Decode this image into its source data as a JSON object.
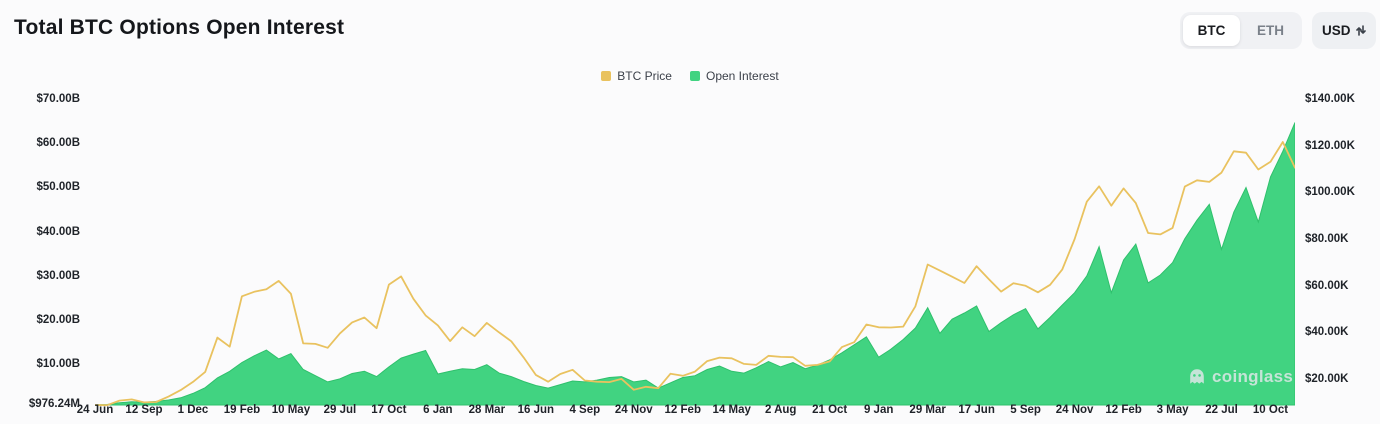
{
  "page": {
    "title": "Total BTC Options Open Interest"
  },
  "controls": {
    "asset_toggle": {
      "options": [
        "BTC",
        "ETH"
      ],
      "selected": "BTC"
    },
    "currency_selector": {
      "value": "USD"
    }
  },
  "legend": [
    {
      "label": "BTC Price",
      "color": "#e9c25f"
    },
    {
      "label": "Open Interest",
      "color": "#41d381"
    }
  ],
  "watermark": {
    "text": "coinglass"
  },
  "chart_data": {
    "type": "mixed",
    "title": "Total BTC Options Open Interest",
    "grid": false,
    "legend_position": "top-center",
    "x_labels": [
      "24 Jun",
      "12 Sep",
      "1 Dec",
      "19 Feb",
      "10 May",
      "29 Jul",
      "17 Oct",
      "6 Jan",
      "28 Mar",
      "16 Jun",
      "4 Sep",
      "24 Nov",
      "12 Feb",
      "14 May",
      "2 Aug",
      "21 Oct",
      "9 Jan",
      "29 Mar",
      "17 Jun",
      "5 Sep",
      "24 Nov",
      "12 Feb",
      "3 May",
      "22 Jul",
      "10 Oct"
    ],
    "x_label_indices": [
      0,
      4,
      8,
      12,
      16,
      20,
      24,
      28,
      32,
      36,
      40,
      44,
      48,
      52,
      56,
      60,
      64,
      68,
      72,
      76,
      80,
      84,
      88,
      92,
      96
    ],
    "left_axis": {
      "unit": "USD billions",
      "tick_labels": [
        "$70.00B",
        "$60.00B",
        "$50.00B",
        "$40.00B",
        "$30.00B",
        "$20.00B",
        "$10.00B",
        "$976.24M"
      ],
      "tick_values_billions": [
        70,
        60,
        50,
        40,
        30,
        20,
        10,
        0.97624
      ],
      "min": 0.97624,
      "max": 70
    },
    "right_axis": {
      "unit": "USD thousands",
      "tick_labels": [
        "$140.00K",
        "$120.00K",
        "$100.00K",
        "$80.00K",
        "$60.00K",
        "$40.00K",
        "$20.00K"
      ],
      "tick_values_thousands": [
        140,
        120,
        100,
        80,
        60,
        40,
        20
      ],
      "min": 9.3,
      "max": 140
    },
    "series": [
      {
        "name": "Open Interest",
        "type": "area",
        "axis": "left",
        "color": "#41d381",
        "stroke": "#2fc06c",
        "unit_note": "billions USD",
        "values": [
          1.0,
          1.1,
          1.5,
          1.7,
          1.6,
          1.8,
          2.1,
          2.6,
          3.6,
          4.9,
          7.1,
          8.6,
          10.6,
          12.1,
          13.4,
          11.4,
          12.6,
          9.0,
          7.6,
          6.2,
          6.9,
          8.1,
          8.6,
          7.4,
          9.6,
          11.6,
          12.5,
          13.3,
          8.0,
          8.6,
          9.2,
          9.0,
          10.1,
          8.2,
          7.4,
          6.3,
          5.4,
          4.8,
          5.6,
          6.4,
          6.2,
          6.6,
          7.2,
          7.4,
          6.2,
          6.6,
          4.8,
          6.0,
          7.2,
          7.6,
          9.0,
          9.8,
          8.6,
          8.2,
          9.4,
          10.8,
          9.6,
          10.6,
          9.2,
          10.0,
          11.2,
          12.8,
          14.6,
          16.4,
          11.8,
          13.6,
          15.8,
          18.4,
          23.0,
          17.2,
          20.4,
          21.8,
          23.4,
          17.6,
          19.6,
          21.4,
          22.8,
          18.2,
          20.8,
          23.6,
          26.4,
          30.2,
          36.8,
          26.4,
          33.8,
          37.4,
          28.6,
          30.4,
          33.2,
          38.6,
          42.8,
          46.4,
          36.2,
          44.6,
          50.2,
          42.4,
          52.6,
          58.4,
          64.9
        ]
      },
      {
        "name": "BTC Price",
        "type": "line",
        "axis": "right",
        "color": "#e9c25f",
        "unit_note": "thousands USD",
        "values": [
          9.3,
          9.2,
          11.2,
          11.7,
          10.4,
          10.6,
          12.9,
          15.7,
          19.2,
          23.5,
          38.2,
          34.3,
          55.9,
          57.8,
          58.9,
          62.5,
          57.0,
          35.7,
          35.5,
          33.8,
          40.0,
          44.7,
          46.8,
          42.2,
          60.9,
          64.4,
          54.8,
          47.7,
          43.4,
          36.7,
          42.6,
          38.8,
          44.5,
          40.4,
          36.6,
          29.7,
          22.2,
          19.3,
          22.6,
          24.4,
          19.8,
          19.3,
          19.1,
          20.5,
          15.8,
          17.1,
          16.5,
          22.7,
          21.8,
          23.6,
          28.1,
          29.6,
          29.3,
          26.9,
          26.5,
          30.4,
          29.9,
          29.8,
          26.1,
          26.5,
          28.0,
          34.1,
          36.2,
          43.8,
          42.6,
          42.5,
          42.9,
          51.6,
          69.5,
          66.9,
          64.3,
          61.6,
          68.8,
          63.2,
          57.9,
          61.5,
          60.4,
          57.6,
          60.8,
          67.4,
          80.4,
          96.4,
          103.0,
          94.7,
          102.1,
          95.8,
          83.0,
          82.4,
          85.2,
          102.9,
          105.6,
          104.9,
          108.9,
          118.0,
          117.4,
          110.2,
          113.5,
          122.0,
          111.0
        ]
      }
    ]
  }
}
